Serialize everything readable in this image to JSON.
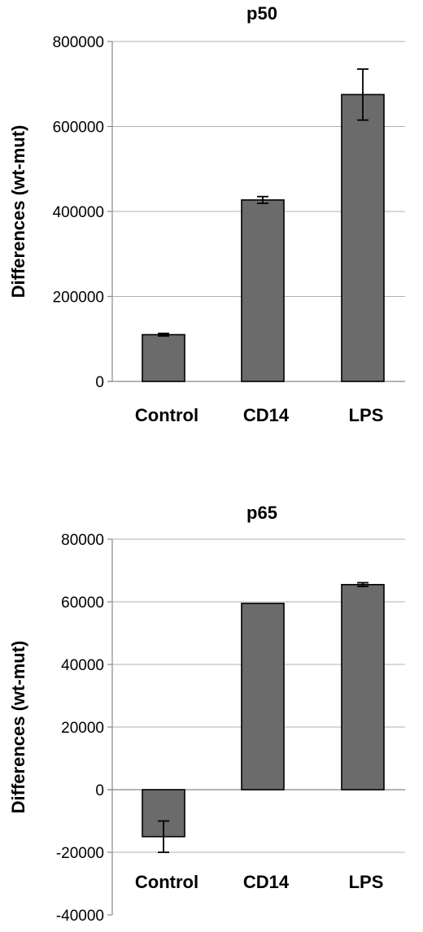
{
  "colors": {
    "bar": "#6b6b6b"
  },
  "chart_data": [
    {
      "type": "bar",
      "title": "p50",
      "xlabel": "",
      "ylabel": "Differences (wt-mut)",
      "categories": [
        "Control",
        "CD14",
        "LPS"
      ],
      "values": [
        110000,
        427000,
        675000
      ],
      "errors": [
        3000,
        8000,
        60000
      ],
      "ylim": [
        0,
        800000
      ],
      "yticks": [
        0,
        200000,
        400000,
        600000,
        800000
      ],
      "ytick_labels": [
        "0",
        "200000",
        "400000",
        "600000",
        "800000"
      ],
      "grid": true
    },
    {
      "type": "bar",
      "title": "p65",
      "xlabel": "",
      "ylabel": "Differences (wt-mut)",
      "categories": [
        "Control",
        "CD14",
        "LPS"
      ],
      "values": [
        -15000,
        59500,
        65500
      ],
      "errors": [
        5000,
        0,
        600
      ],
      "ylim": [
        -40000,
        80000
      ],
      "yticks": [
        -40000,
        -20000,
        0,
        20000,
        40000,
        60000,
        80000
      ],
      "ytick_labels": [
        "-40000",
        "-20000",
        "0",
        "20000",
        "40000",
        "60000",
        "80000"
      ],
      "grid": true
    }
  ]
}
